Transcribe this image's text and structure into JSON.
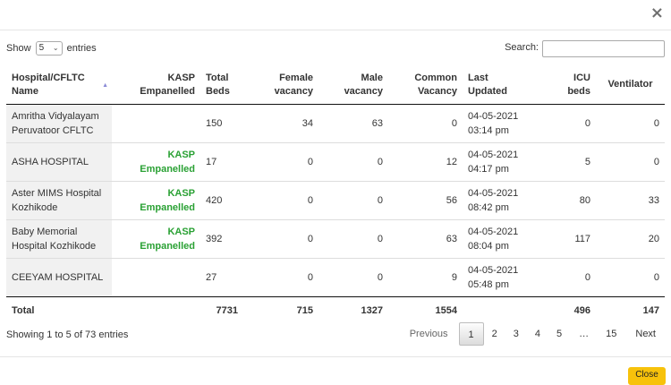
{
  "modal": {
    "close_icon": "×",
    "close_button": "Close"
  },
  "length_menu": {
    "prefix": "Show",
    "value": "5",
    "suffix": "entries"
  },
  "search": {
    "label": "Search:",
    "value": "",
    "placeholder": ""
  },
  "columns": [
    {
      "line1": "Hospital/CFLTC",
      "line2": "Name"
    },
    {
      "line1": "KASP",
      "line2": "Empanelled"
    },
    {
      "line1": "Total",
      "line2": "Beds"
    },
    {
      "line1": "Female",
      "line2": "vacancy"
    },
    {
      "line1": "Male",
      "line2": "vacancy"
    },
    {
      "line1": "Common",
      "line2": "Vacancy"
    },
    {
      "line1": "Last",
      "line2": "Updated"
    },
    {
      "line1": "ICU",
      "line2": "beds"
    },
    {
      "line1": "Ventilator",
      "line2": ""
    }
  ],
  "rows": [
    {
      "name1": "Amritha Vidyalayam",
      "name2": "Peruvatoor CFLTC",
      "kasp1": "",
      "kasp2": "",
      "total": "150",
      "female": "34",
      "male": "63",
      "common": "0",
      "date": "04-05-2021",
      "time": "03:14 pm",
      "icu": "0",
      "ventilator": "0"
    },
    {
      "name1": "ASHA HOSPITAL",
      "name2": "",
      "kasp1": "KASP",
      "kasp2": "Empanelled",
      "total": "17",
      "female": "0",
      "male": "0",
      "common": "12",
      "date": "04-05-2021",
      "time": "04:17 pm",
      "icu": "5",
      "ventilator": "0"
    },
    {
      "name1": "Aster MIMS Hospital",
      "name2": "Kozhikode",
      "kasp1": "KASP",
      "kasp2": "Empanelled",
      "total": "420",
      "female": "0",
      "male": "0",
      "common": "56",
      "date": "04-05-2021",
      "time": "08:42 pm",
      "icu": "80",
      "ventilator": "33"
    },
    {
      "name1": "Baby Memorial",
      "name2": "Hospital Kozhikode",
      "kasp1": "KASP",
      "kasp2": "Empanelled",
      "total": "392",
      "female": "0",
      "male": "0",
      "common": "63",
      "date": "04-05-2021",
      "time": "08:04 pm",
      "icu": "117",
      "ventilator": "20"
    },
    {
      "name1": "CEEYAM HOSPITAL",
      "name2": "",
      "kasp1": "",
      "kasp2": "",
      "total": "27",
      "female": "0",
      "male": "0",
      "common": "9",
      "date": "04-05-2021",
      "time": "05:48 pm",
      "icu": "0",
      "ventilator": "0"
    }
  ],
  "totals": {
    "label": "Total",
    "total": "7731",
    "female": "715",
    "male": "1327",
    "common": "1554",
    "icu": "496",
    "ventilator": "147"
  },
  "info": "Showing 1 to 5 of 73 entries",
  "pagination": {
    "previous": "Previous",
    "pages": [
      "1",
      "2",
      "3",
      "4",
      "5"
    ],
    "ellipsis": "…",
    "last": "15",
    "next": "Next",
    "current": "1"
  },
  "colors": {
    "kasp_green": "#2aa134",
    "close_button": "#f7c20b"
  }
}
